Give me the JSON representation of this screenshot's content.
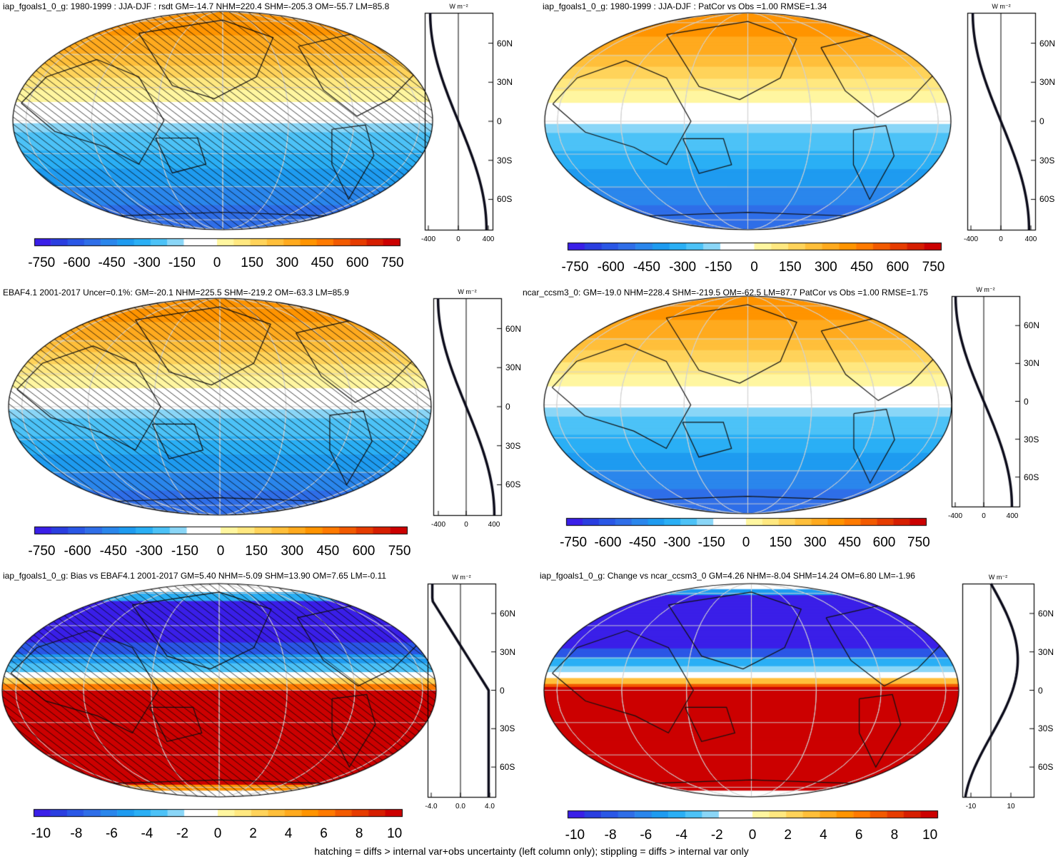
{
  "panels": [
    {
      "title": "iap_fgoals1_0_g: 1980-1999 : JJA-DJF : rsdt GM=-14.7 NHM=220.4 SHM=-205.3 OM=-55.7 LM=85.8",
      "scheme": "absolute",
      "hatched": true,
      "colorbar_labels": [
        "-750",
        "-600",
        "-450",
        "-300",
        "-150",
        "0",
        "150",
        "300",
        "450",
        "600",
        "750"
      ],
      "profile": {
        "unit": "W m⁻²",
        "x_ticks": [
          "-400",
          "0",
          "400"
        ],
        "y_ticks": [
          "60N",
          "30N",
          "0",
          "30S",
          "60S"
        ]
      }
    },
    {
      "title": "iap_fgoals1_0_g: 1980-1999 : JJA-DJF : PatCor vs Obs =1.00 RMSE=1.34",
      "scheme": "absolute",
      "hatched": false,
      "colorbar_labels": [
        "-750",
        "-600",
        "-450",
        "-300",
        "-150",
        "0",
        "150",
        "300",
        "450",
        "600",
        "750"
      ],
      "profile": {
        "unit": "W m⁻²",
        "x_ticks": [
          "-400",
          "0",
          "400"
        ],
        "y_ticks": [
          "60N",
          "30N",
          "0",
          "30S",
          "60S"
        ]
      }
    },
    {
      "title": "EBAF4.1 2001-2017 Uncer=0.1%: GM=-20.1 NHM=225.5 SHM=-219.2 OM=-63.3 LM=85.9",
      "scheme": "absolute",
      "hatched": true,
      "colorbar_labels": [
        "-750",
        "-600",
        "-450",
        "-300",
        "-150",
        "0",
        "150",
        "300",
        "450",
        "600",
        "750"
      ],
      "profile": {
        "unit": "W m⁻²",
        "x_ticks": [
          "-400",
          "0",
          "400"
        ],
        "y_ticks": [
          "60N",
          "30N",
          "0",
          "30S",
          "60S"
        ]
      }
    },
    {
      "title": "ncar_ccsm3_0: GM=-19.0 NHM=228.4 SHM=-219.5 OM=-62.5 LM=87.7 PatCor vs Obs =1.00 RMSE=1.75",
      "scheme": "absolute",
      "hatched": false,
      "colorbar_labels": [
        "-750",
        "-600",
        "-450",
        "-300",
        "-150",
        "0",
        "150",
        "300",
        "450",
        "600",
        "750"
      ],
      "profile": {
        "unit": "W m⁻²",
        "x_ticks": [
          "-400",
          "0",
          "400"
        ],
        "y_ticks": [
          "60N",
          "30N",
          "0",
          "30S",
          "60S"
        ]
      }
    },
    {
      "title": "iap_fgoals1_0_g: Bias vs EBAF4.1 2001-2017 GM=5.40 NHM=-5.09 SHM=13.90 OM=7.65 LM=-0.11",
      "scheme": "bias",
      "hatched": true,
      "colorbar_labels": [
        "-10",
        "-8",
        "-6",
        "-4",
        "-2",
        "0",
        "2",
        "4",
        "6",
        "8",
        "10"
      ],
      "profile": {
        "unit": "W m⁻²",
        "x_ticks": [
          "-4.0",
          "0.0",
          "4.0"
        ],
        "y_ticks": [
          "60N",
          "30N",
          "0",
          "30S",
          "60S"
        ]
      }
    },
    {
      "title": "iap_fgoals1_0_g: Change vs ncar_ccsm3_0 GM=4.26 NHM=-8.04 SHM=14.24 OM=6.80 LM=-1.96",
      "scheme": "change",
      "hatched": false,
      "colorbar_labels": [
        "-10",
        "-8",
        "-6",
        "-4",
        "-2",
        "0",
        "2",
        "4",
        "6",
        "8",
        "10"
      ],
      "profile": {
        "unit": "W m⁻²",
        "x_ticks": [
          "-10",
          "10"
        ],
        "y_ticks": [
          "60N",
          "30N",
          "0",
          "30S",
          "60S"
        ]
      }
    }
  ],
  "palette": [
    "#3a1fe8",
    "#2a3ee0",
    "#2a57e6",
    "#2f6ee8",
    "#2a86ec",
    "#1e9bf0",
    "#2aaff5",
    "#4cc2f7",
    "#8ad6f7",
    "#ffffff",
    "#ffffff",
    "#fff6a0",
    "#ffe880",
    "#ffd35a",
    "#ffbf3a",
    "#ffaa1e",
    "#ff9400",
    "#ff7a00",
    "#f25a00",
    "#e63c00",
    "#d61e00",
    "#cc0000"
  ],
  "footer": "hatching = diffs > internal var+obs uncertainty (left column only); stippling = diffs > internal var only"
}
